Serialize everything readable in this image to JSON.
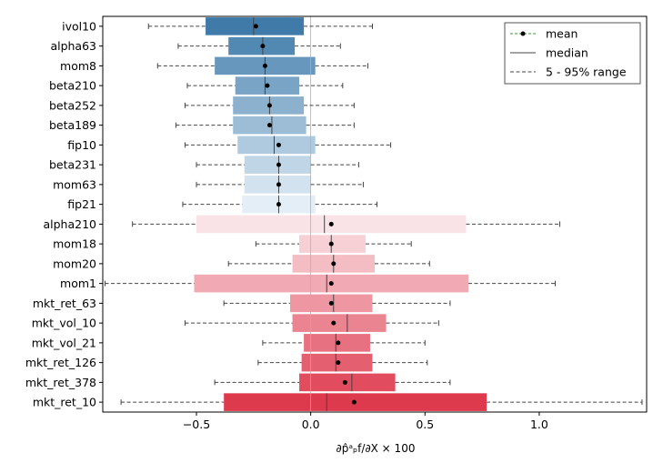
{
  "chart_data": {
    "type": "bar",
    "orientation": "horizontal",
    "categories": [
      "ivol10",
      "alpha63",
      "mom8",
      "beta210",
      "beta252",
      "beta189",
      "fip10",
      "beta231",
      "mom63",
      "fip21",
      "alpha210",
      "mom18",
      "mom20",
      "mom1",
      "mkt_ret_63",
      "mkt_vol_10",
      "mkt_vol_21",
      "mkt_ret_126",
      "mkt_ret_378",
      "mkt_ret_10"
    ],
    "q_low": [
      -0.46,
      -0.36,
      -0.42,
      -0.33,
      -0.34,
      -0.34,
      -0.32,
      -0.29,
      -0.29,
      -0.3,
      -0.5,
      -0.05,
      -0.08,
      -0.51,
      -0.09,
      -0.08,
      -0.03,
      -0.04,
      -0.05,
      -0.38
    ],
    "q_high": [
      -0.03,
      -0.07,
      0.02,
      -0.05,
      -0.03,
      -0.02,
      0.02,
      0.0,
      0.0,
      0.02,
      0.68,
      0.24,
      0.28,
      0.69,
      0.27,
      0.33,
      0.26,
      0.27,
      0.37,
      0.77
    ],
    "mean": [
      -0.24,
      -0.21,
      -0.2,
      -0.19,
      -0.18,
      -0.18,
      -0.14,
      -0.14,
      -0.14,
      -0.14,
      0.09,
      0.09,
      0.1,
      0.09,
      0.09,
      0.1,
      0.12,
      0.12,
      0.15,
      0.19
    ],
    "median": [
      -0.25,
      -0.21,
      -0.2,
      -0.2,
      -0.18,
      -0.17,
      -0.16,
      -0.14,
      -0.14,
      -0.14,
      0.06,
      0.09,
      0.1,
      0.07,
      0.1,
      0.16,
      0.11,
      0.11,
      0.18,
      0.07
    ],
    "p5": [
      -0.71,
      -0.58,
      -0.67,
      -0.54,
      -0.55,
      -0.59,
      -0.55,
      -0.5,
      -0.5,
      -0.56,
      -0.78,
      -0.24,
      -0.36,
      -0.9,
      -0.38,
      -0.55,
      -0.21,
      -0.23,
      -0.42,
      -0.83
    ],
    "p95": [
      0.27,
      0.13,
      0.25,
      0.14,
      0.19,
      0.19,
      0.35,
      0.21,
      0.23,
      0.29,
      1.09,
      0.44,
      0.52,
      1.07,
      0.61,
      0.56,
      0.5,
      0.51,
      0.61,
      1.45
    ],
    "colors": [
      "#3f7aa8",
      "#5289b2",
      "#6897bd",
      "#7aa4c6",
      "#8cb1ce",
      "#9dbdd6",
      "#afcadf",
      "#c0d6e7",
      "#d2e2ee",
      "#e4eef6",
      "#fae3e6",
      "#f7d0d5",
      "#f4bdc4",
      "#f1aab3",
      "#ee97a2",
      "#eb8491",
      "#e77180",
      "#e45f6f",
      "#e14c5e",
      "#de3a4d"
    ],
    "xlim": [
      -0.91,
      1.47
    ],
    "xticks": [
      -0.5,
      0.0,
      0.5,
      1.0
    ],
    "xtick_labels": [
      "−0.5",
      "0.0",
      "0.5",
      "1.0"
    ],
    "legend_entries": [
      "mean",
      "median",
      "5 - 95% range"
    ],
    "legend_loc": "top-right",
    "grid": false
  }
}
